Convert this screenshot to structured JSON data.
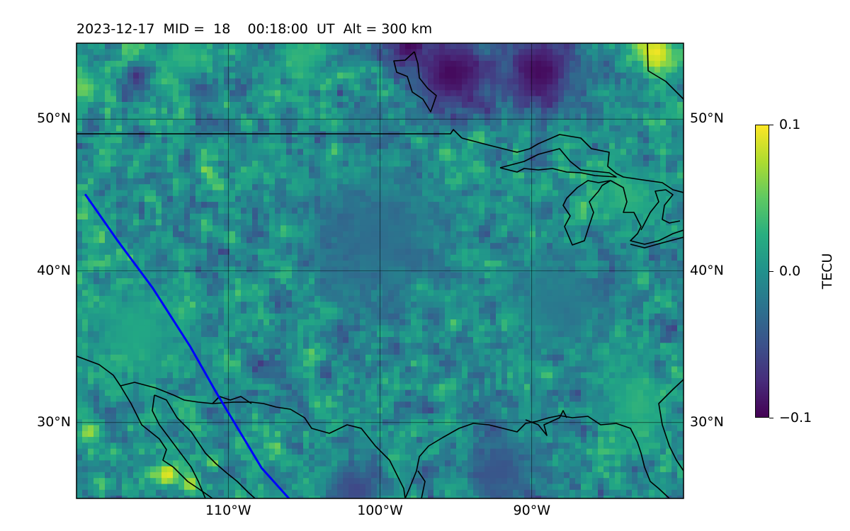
{
  "title": {
    "date": "2023-12-17",
    "mid": "MID =  18",
    "time": "00:18:00  UT",
    "alt": "Alt = 300 km"
  },
  "map": {
    "lon_range": [
      -120,
      -80
    ],
    "lat_range": [
      25,
      55
    ],
    "lat_ticks": [
      {
        "value": 50,
        "label": "50°N"
      },
      {
        "value": 40,
        "label": "40°N"
      },
      {
        "value": 30,
        "label": "30°N"
      }
    ],
    "lon_ticks": [
      {
        "value": -110,
        "label": "110°W"
      },
      {
        "value": -100,
        "label": "100°W"
      },
      {
        "value": -90,
        "label": "90°W"
      }
    ],
    "track_color": "#0000ff",
    "track": [
      [
        -119.4,
        45.0
      ],
      [
        -117.3,
        42.0
      ],
      [
        -115.0,
        38.9
      ],
      [
        -112.5,
        35.0
      ],
      [
        -110.8,
        32.0
      ],
      [
        -109.3,
        29.5
      ],
      [
        -107.8,
        27.0
      ],
      [
        -106.0,
        25.0
      ]
    ]
  },
  "colorbar": {
    "label": "TECU",
    "cmap": "viridis",
    "min": -0.1,
    "max": 0.1,
    "ticks": [
      {
        "value": 0.1,
        "label": "0.1"
      },
      {
        "value": 0.0,
        "label": "0.0"
      },
      {
        "value": -0.1,
        "label": "−0.1"
      }
    ]
  },
  "anomalies": [
    {
      "lon": -81.8,
      "lat": 54.4,
      "r": 1.8,
      "v": 0.1
    },
    {
      "lon": -95.3,
      "lat": 53.0,
      "r": 3.5,
      "v": -0.1
    },
    {
      "lon": -89.5,
      "lat": 53.2,
      "r": 3.5,
      "v": -0.1
    },
    {
      "lon": -98.2,
      "lat": 54.8,
      "r": 1.5,
      "v": -0.1
    },
    {
      "lon": -116.0,
      "lat": 52.8,
      "r": 1.0,
      "v": -0.08
    },
    {
      "lon": -119.5,
      "lat": 52.0,
      "r": 1.2,
      "v": 0.06
    },
    {
      "lon": -113.0,
      "lat": 54.0,
      "r": 2.0,
      "v": 0.03
    },
    {
      "lon": -105.0,
      "lat": 54.0,
      "r": 2.0,
      "v": 0.03
    },
    {
      "lon": -114.0,
      "lat": 26.6,
      "r": 0.9,
      "v": 0.1
    },
    {
      "lon": -112.5,
      "lat": 26.0,
      "r": 0.8,
      "v": 0.09
    },
    {
      "lon": -119.2,
      "lat": 29.4,
      "r": 0.9,
      "v": 0.08
    },
    {
      "lon": -97.3,
      "lat": 39.0,
      "r": 0.6,
      "v": 0.08
    },
    {
      "lon": -111.0,
      "lat": 27.3,
      "r": 0.6,
      "v": 0.07
    },
    {
      "lon": -92.0,
      "lat": 26.8,
      "r": 3.0,
      "v": -0.05
    },
    {
      "lon": -101.5,
      "lat": 25.6,
      "r": 2.5,
      "v": -0.06
    },
    {
      "lon": -100.0,
      "lat": 42.0,
      "r": 6.0,
      "v": -0.03
    },
    {
      "lon": -88.0,
      "lat": 38.0,
      "r": 4.0,
      "v": -0.02
    },
    {
      "lon": -83.0,
      "lat": 31.0,
      "r": 3.0,
      "v": 0.03
    },
    {
      "lon": -116.0,
      "lat": 36.0,
      "r": 4.0,
      "v": 0.02
    },
    {
      "lon": -84.0,
      "lat": 45.0,
      "r": 2.5,
      "v": 0.03
    },
    {
      "lon": -95.7,
      "lat": 47.8,
      "r": 0.8,
      "v": 0.05
    },
    {
      "lon": -103.0,
      "lat": 48.0,
      "r": 0.6,
      "v": 0.06
    }
  ]
}
